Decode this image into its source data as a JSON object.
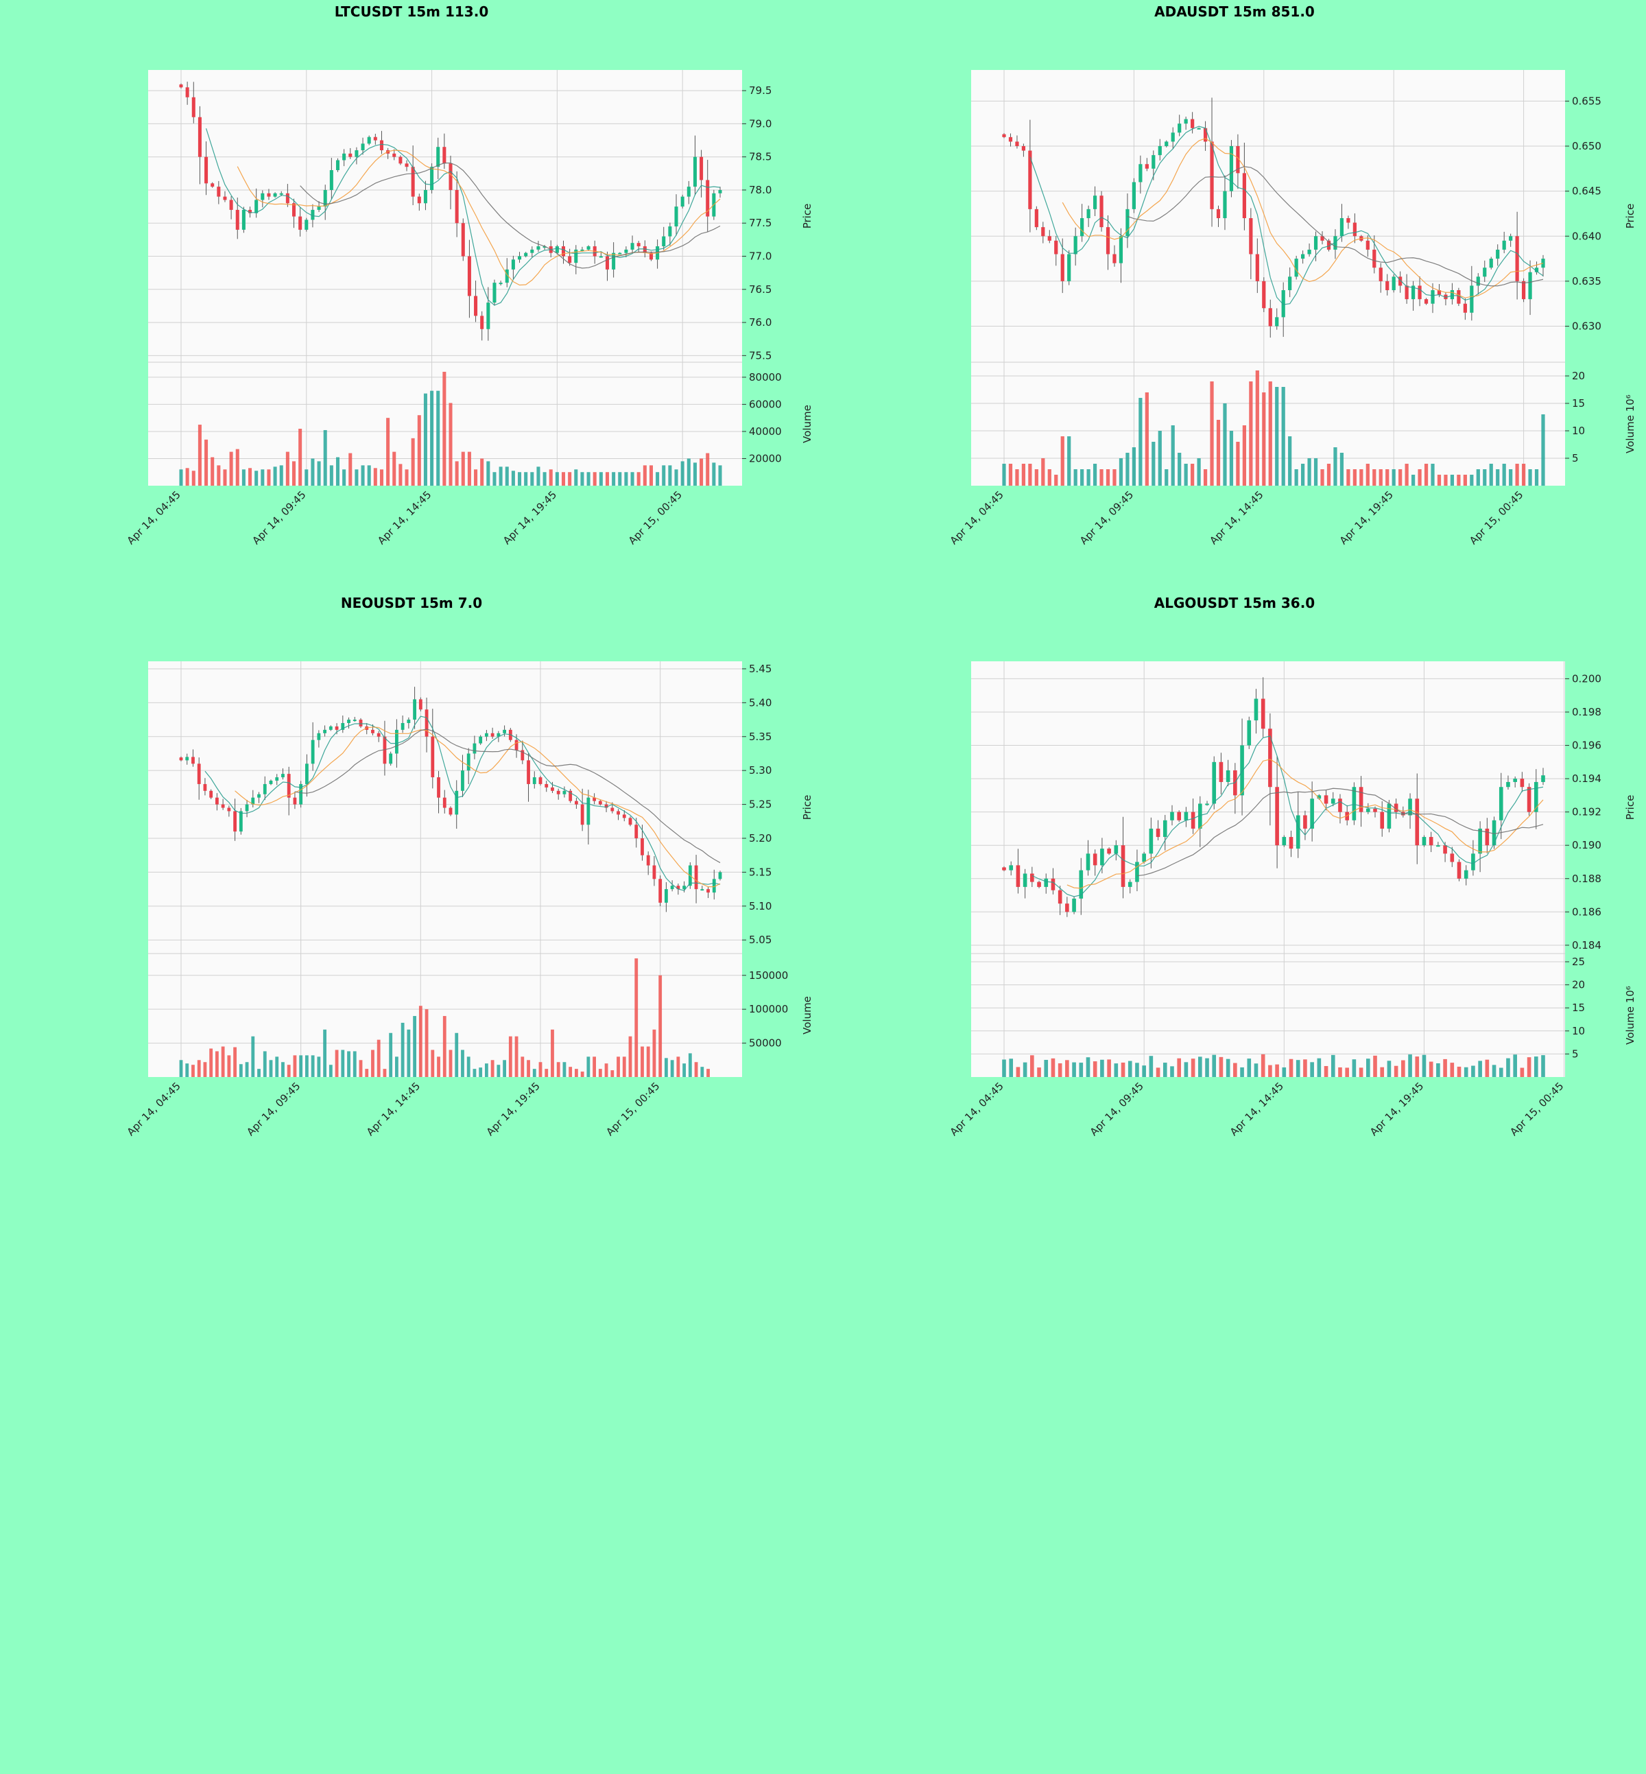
{
  "colors": {
    "page_bg": "#8fffc3",
    "highlight_bg": "#f8a69a",
    "plot_bg": "#fafafa",
    "up": "#26a69a",
    "up_bright": "#1cba87",
    "down": "#ef5350",
    "down_bright": "#e8404b",
    "ma_fast": "#2a9d8f",
    "ma_mid": "#f39c3c",
    "ma_slow": "#707070",
    "grid": "#d0d0d0"
  },
  "x_ticks": [
    "Apr 14, 04:45",
    "Apr 14, 09:45",
    "Apr 14, 14:45",
    "Apr 14, 19:45",
    "Apr 15, 00:45"
  ],
  "chart_data": [
    {
      "type": "candlestick",
      "title": "LTCUSDT 15m 113.0",
      "highlight": false,
      "ylabel": "Price",
      "vol_label": "Volume",
      "price_ylim": [
        75.4,
        79.75
      ],
      "price_ticks": [
        "75.5",
        "76.0",
        "76.5",
        "77.0",
        "77.5",
        "78.0",
        "78.5",
        "79.0",
        "79.5"
      ],
      "price_tick_values": [
        75.5,
        76.0,
        76.5,
        77.0,
        77.5,
        78.0,
        78.5,
        79.0,
        79.5
      ],
      "vol_ylim": [
        0,
        85000
      ],
      "vol_ticks": [
        "20000",
        "40000",
        "60000",
        "80000"
      ],
      "vol_tick_values": [
        20000,
        40000,
        60000,
        80000
      ],
      "closes": [
        79.55,
        79.4,
        79.1,
        78.5,
        78.1,
        78.05,
        77.9,
        77.85,
        77.7,
        77.4,
        77.7,
        77.65,
        77.85,
        77.95,
        77.9,
        77.95,
        77.95,
        77.8,
        77.6,
        77.4,
        77.55,
        77.7,
        77.75,
        78.0,
        78.3,
        78.45,
        78.55,
        78.5,
        78.6,
        78.7,
        78.8,
        78.75,
        78.6,
        78.55,
        78.5,
        78.4,
        78.35,
        77.9,
        77.8,
        78.0,
        78.35,
        78.65,
        78.4,
        78.0,
        77.5,
        77.0,
        76.4,
        76.1,
        75.9,
        76.3,
        76.6,
        76.6,
        76.8,
        76.95,
        77.0,
        77.05,
        77.1,
        77.15,
        77.15,
        77.05,
        77.15,
        77.0,
        76.9,
        77.1,
        77.1,
        77.15,
        77.0,
        77.0,
        76.8,
        77.05,
        77.05,
        77.1,
        77.2,
        77.15,
        77.05,
        76.95,
        77.15,
        77.3,
        77.45,
        77.75,
        77.9,
        78.05,
        78.5,
        78.15,
        77.6,
        77.95,
        78.0
      ],
      "volumes": [
        12000,
        13000,
        11000,
        45000,
        34000,
        21000,
        15000,
        12000,
        25000,
        27000,
        12000,
        13000,
        11000,
        12000,
        12000,
        14000,
        15000,
        25000,
        18000,
        42000,
        12000,
        20000,
        18000,
        41000,
        15000,
        21000,
        12000,
        24000,
        12000,
        15000,
        15000,
        13000,
        12000,
        50000,
        25000,
        16000,
        12000,
        35000,
        52000,
        68000,
        70000,
        70000,
        84000,
        61000,
        18000,
        25000,
        25000,
        12000,
        20000,
        18000,
        10000,
        14000,
        14000,
        11000,
        10000,
        10000,
        10000,
        14000,
        10000,
        12000,
        10000,
        10000,
        10000,
        12000,
        10000,
        10000,
        10000,
        10000,
        10000,
        10000,
        10000,
        10000,
        10000,
        10000,
        15000,
        15000,
        10000,
        15000,
        15000,
        12000,
        18000,
        20000,
        17000,
        20000,
        24000,
        17000,
        15000
      ]
    },
    {
      "type": "candlestick",
      "title": "ADAUSDT 15m 851.0",
      "highlight": false,
      "ylabel": "Price",
      "vol_label": "Volume  10⁶",
      "price_ylim": [
        0.626,
        0.658
      ],
      "price_ticks": [
        "0.630",
        "0.635",
        "0.640",
        "0.645",
        "0.650",
        "0.655"
      ],
      "price_tick_values": [
        0.63,
        0.635,
        0.64,
        0.645,
        0.65,
        0.655
      ],
      "vol_ylim": [
        0,
        21
      ],
      "vol_ticks": [
        "5",
        "10",
        "15",
        "20"
      ],
      "vol_tick_values": [
        5,
        10,
        15,
        20
      ],
      "closes": [
        0.651,
        0.6505,
        0.65,
        0.6495,
        0.643,
        0.641,
        0.64,
        0.6395,
        0.638,
        0.635,
        0.638,
        0.64,
        0.642,
        0.643,
        0.6445,
        0.641,
        0.638,
        0.637,
        0.64,
        0.643,
        0.646,
        0.648,
        0.6475,
        0.649,
        0.65,
        0.6505,
        0.6515,
        0.6525,
        0.653,
        0.652,
        0.652,
        0.6505,
        0.643,
        0.642,
        0.645,
        0.65,
        0.647,
        0.642,
        0.638,
        0.635,
        0.632,
        0.63,
        0.631,
        0.634,
        0.6355,
        0.6375,
        0.638,
        0.6385,
        0.64,
        0.6395,
        0.6385,
        0.64,
        0.642,
        0.6415,
        0.64,
        0.6395,
        0.6385,
        0.6365,
        0.635,
        0.634,
        0.6355,
        0.6345,
        0.633,
        0.6345,
        0.633,
        0.6325,
        0.634,
        0.6335,
        0.633,
        0.634,
        0.6325,
        0.6315,
        0.6345,
        0.6355,
        0.6365,
        0.6375,
        0.6385,
        0.6395,
        0.64,
        0.635,
        0.633,
        0.636,
        0.6365,
        0.6375
      ],
      "volumes": [
        4,
        4,
        3,
        4,
        4,
        3,
        5,
        3,
        2,
        9,
        9,
        3,
        3,
        3,
        4,
        3,
        3,
        3,
        5,
        6,
        7,
        16,
        17,
        8,
        10,
        3,
        11,
        6,
        4,
        4,
        5,
        3,
        19,
        12,
        15,
        10,
        8,
        11,
        19,
        21,
        17,
        19,
        18,
        18,
        9,
        3,
        4,
        5,
        5,
        3,
        4,
        7,
        6,
        3,
        3,
        3,
        4,
        3,
        3,
        3,
        3,
        3,
        4,
        2,
        3,
        4,
        4,
        2,
        2,
        2,
        2,
        2,
        2,
        3,
        3,
        4,
        3,
        4,
        3,
        4,
        4,
        3,
        3,
        13
      ]
    },
    {
      "type": "candlestick",
      "title": "NEOUSDT 15m 7.0",
      "highlight": false,
      "ylabel": "Price",
      "vol_label": "Volume",
      "price_ylim": [
        5.03,
        5.455
      ],
      "price_ticks": [
        "5.05",
        "5.10",
        "5.15",
        "5.20",
        "5.25",
        "5.30",
        "5.35",
        "5.40",
        "5.45"
      ],
      "price_tick_values": [
        5.05,
        5.1,
        5.15,
        5.2,
        5.25,
        5.3,
        5.35,
        5.4,
        5.45
      ],
      "vol_ylim": [
        0,
        170000
      ],
      "vol_ticks": [
        "50000",
        "100000",
        "150000"
      ],
      "vol_tick_values": [
        50000,
        100000,
        150000
      ],
      "closes": [
        5.315,
        5.32,
        5.31,
        5.28,
        5.27,
        5.26,
        5.25,
        5.245,
        5.24,
        5.21,
        5.24,
        5.25,
        5.26,
        5.265,
        5.28,
        5.285,
        5.29,
        5.295,
        5.26,
        5.25,
        5.28,
        5.31,
        5.345,
        5.355,
        5.36,
        5.365,
        5.36,
        5.37,
        5.375,
        5.375,
        5.365,
        5.36,
        5.355,
        5.35,
        5.31,
        5.325,
        5.36,
        5.37,
        5.375,
        5.405,
        5.39,
        5.35,
        5.29,
        5.26,
        5.245,
        5.235,
        5.27,
        5.3,
        5.325,
        5.34,
        5.35,
        5.355,
        5.35,
        5.355,
        5.36,
        5.345,
        5.33,
        5.315,
        5.28,
        5.29,
        5.28,
        5.275,
        5.27,
        5.265,
        5.27,
        5.255,
        5.25,
        5.22,
        5.26,
        5.255,
        5.25,
        5.245,
        5.24,
        5.235,
        5.23,
        5.22,
        5.2,
        5.175,
        5.16,
        5.14,
        5.105,
        5.125,
        5.13,
        5.125,
        5.13,
        5.16,
        5.125,
        5.125,
        5.12,
        5.14,
        5.15
      ],
      "volumes": [
        25000,
        20000,
        18000,
        25000,
        22000,
        42000,
        38000,
        45000,
        32000,
        44000,
        19000,
        22000,
        60000,
        12000,
        38000,
        25000,
        30000,
        22000,
        18000,
        32000,
        32000,
        32000,
        32000,
        30000,
        70000,
        18000,
        40000,
        40000,
        38000,
        38000,
        25000,
        12000,
        40000,
        55000,
        12000,
        65000,
        30000,
        80000,
        70000,
        90000,
        105000,
        100000,
        40000,
        30000,
        90000,
        40000,
        65000,
        40000,
        30000,
        12000,
        14000,
        20000,
        25000,
        18000,
        25000,
        60000,
        60000,
        30000,
        25000,
        12000,
        22000,
        12000,
        70000,
        22000,
        22000,
        15000,
        12000,
        8000,
        30000,
        30000,
        12000,
        20000,
        10000,
        30000,
        30000,
        60000,
        175000,
        45000,
        45000,
        70000,
        150000,
        28000,
        25000,
        30000,
        20000,
        35000,
        22000,
        15000,
        12000
      ]
    },
    {
      "type": "candlestick",
      "title": "ALGOUSDT 15m 36.0",
      "highlight": false,
      "ylabel": "Price",
      "vol_label": "Volume  10⁶",
      "price_ylim": [
        0.1835,
        0.2008
      ],
      "price_ticks": [
        "0.184",
        "0.186",
        "0.188",
        "0.190",
        "0.192",
        "0.194",
        "0.196",
        "0.198",
        "0.200"
      ],
      "price_tick_values": [
        0.184,
        0.186,
        0.188,
        0.19,
        0.192,
        0.194,
        0.196,
        0.198,
        0.2
      ],
      "vol_ylim": [
        0,
        25
      ],
      "vol_ticks": [
        "5",
        "10",
        "15",
        "20",
        "25"
      ],
      "vol_tick_values": [
        5,
        10,
        15,
        20,
        25
      ],
      "closes": [
        0.1885,
        0.1888,
        0.1875,
        0.1883,
        0.1878,
        0.1875,
        0.188,
        0.1873,
        0.1865,
        0.186,
        0.1868,
        0.1885,
        0.1895,
        0.1888,
        0.1898,
        0.1895,
        0.19,
        0.1875,
        0.1878,
        0.189,
        0.1895,
        0.191,
        0.1905,
        0.1915,
        0.192,
        0.1915,
        0.192,
        0.191,
        0.1925,
        0.1925,
        0.195,
        0.1938,
        0.1945,
        0.193,
        0.196,
        0.1975,
        0.1988,
        0.197,
        0.1935,
        0.19,
        0.1905,
        0.1898,
        0.1918,
        0.191,
        0.1928,
        0.193,
        0.1925,
        0.1928,
        0.192,
        0.1915,
        0.1935,
        0.192,
        0.1922,
        0.192,
        0.191,
        0.1925,
        0.192,
        0.1918,
        0.1928,
        0.19,
        0.1905,
        0.19,
        0.19,
        0.1895,
        0.189,
        0.188,
        0.1885,
        0.1895,
        0.191,
        0.19,
        0.1915,
        0.1935,
        0.1938,
        0.194,
        0.1935,
        0.192,
        0.1938,
        0.1942
      ]
    }
  ]
}
